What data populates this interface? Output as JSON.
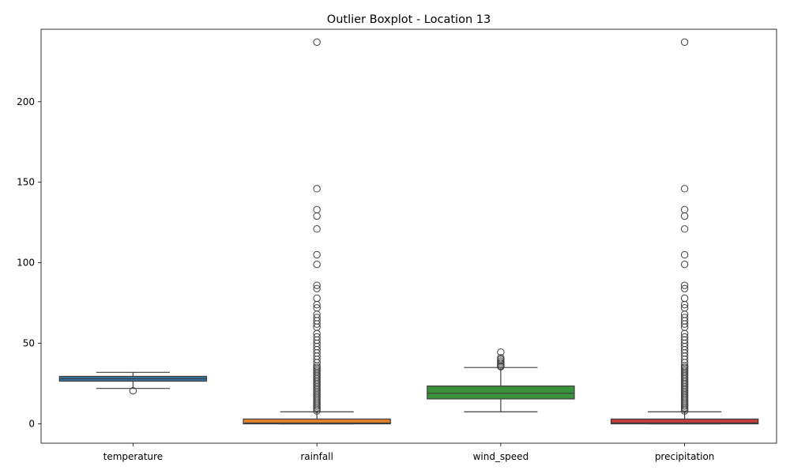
{
  "chart_data": {
    "type": "boxplot",
    "title": "Outlier Boxplot - Location 13",
    "xlabel": "",
    "ylabel": "",
    "ylim": [
      -12,
      245
    ],
    "yticks": [
      0,
      50,
      100,
      150,
      200
    ],
    "ytick_labels": [
      "0",
      "50",
      "100",
      "150",
      "200"
    ],
    "grid": false,
    "legend": "none",
    "categories": [
      "temperature",
      "rainfall",
      "wind_speed",
      "precipitation"
    ],
    "series": [
      {
        "color": "#3274a1",
        "whisker_low": 22,
        "q1": 26.5,
        "median": 28,
        "q3": 29.5,
        "whisker_high": 32,
        "outliers": [
          20.5
        ]
      },
      {
        "color": "#e1812c",
        "whisker_low": 0,
        "q1": 0,
        "median": 0.5,
        "q3": 3,
        "whisker_high": 7.5,
        "outliers": [
          8,
          9,
          10,
          11,
          12,
          13,
          14,
          15,
          16,
          17,
          18,
          19,
          20,
          21,
          22,
          23,
          24,
          25,
          26,
          27,
          28,
          29,
          30,
          31,
          32,
          33,
          34,
          35,
          36,
          38,
          40,
          42,
          44,
          46,
          48,
          50,
          52,
          54,
          56,
          60,
          62,
          64,
          66,
          68,
          72,
          74,
          78,
          84,
          86,
          99,
          105,
          121,
          129,
          133,
          146,
          237
        ]
      },
      {
        "color": "#3a923a",
        "whisker_low": 7.5,
        "q1": 15.5,
        "median": 19,
        "q3": 23.5,
        "whisker_high": 35,
        "outliers": [
          35.5,
          36,
          37,
          38,
          39,
          40,
          41,
          44.5
        ]
      },
      {
        "color": "#c03d3e",
        "whisker_low": 0,
        "q1": 0,
        "median": 0.5,
        "q3": 3,
        "whisker_high": 7.5,
        "outliers": [
          8,
          9,
          10,
          11,
          12,
          13,
          14,
          15,
          16,
          17,
          18,
          19,
          20,
          21,
          22,
          23,
          24,
          25,
          26,
          27,
          28,
          29,
          30,
          31,
          32,
          33,
          34,
          35,
          36,
          38,
          40,
          42,
          44,
          46,
          48,
          50,
          52,
          54,
          56,
          60,
          62,
          64,
          66,
          68,
          72,
          74,
          78,
          84,
          86,
          99,
          105,
          121,
          129,
          133,
          146,
          237
        ]
      }
    ]
  }
}
